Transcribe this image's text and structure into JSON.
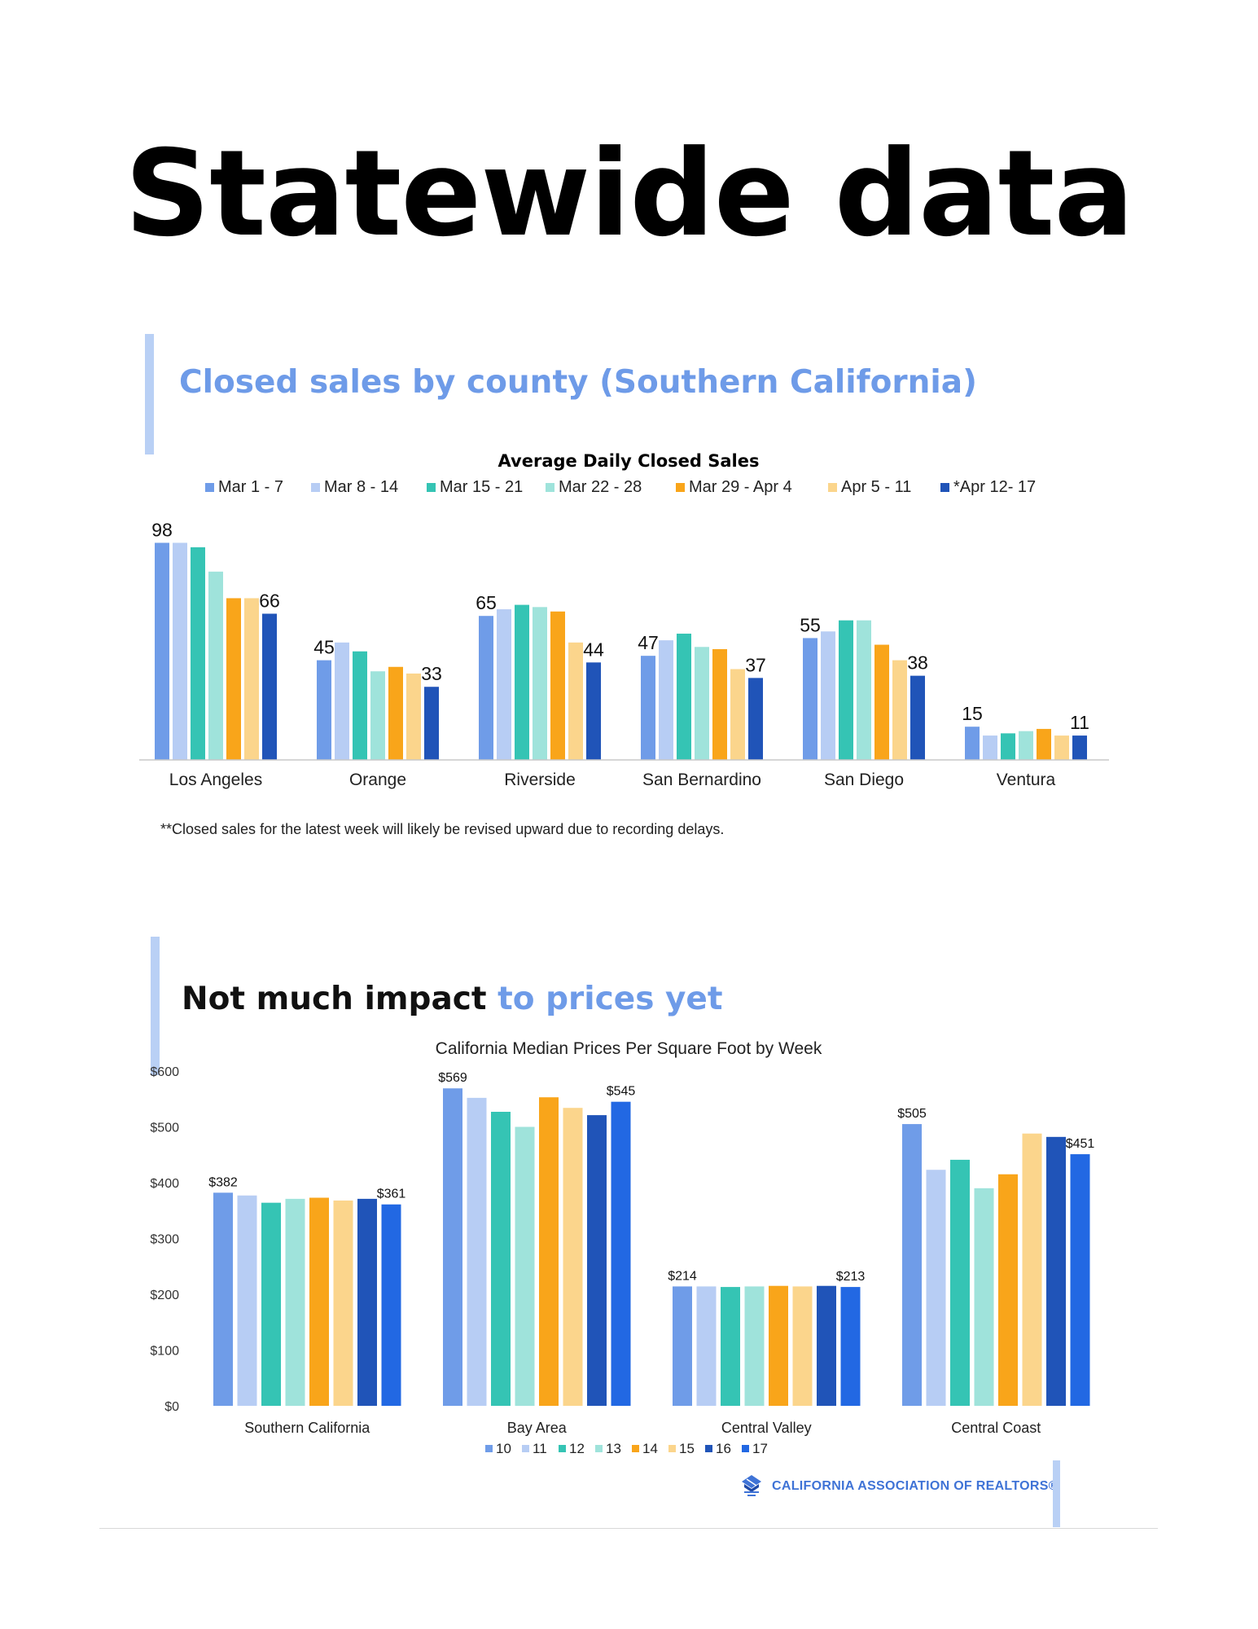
{
  "page": {
    "title": "Statewide data"
  },
  "section1": {
    "heading": "Closed sales by county (Southern California)",
    "footnote": "**Closed sales for the latest week will likely be revised upward due to recording delays."
  },
  "section2": {
    "heading_dark": "Not much impact ",
    "heading_accent": "to prices yet"
  },
  "footer": {
    "logo_text": "CALIFORNIA ASSOCIATION OF REALTORS®"
  },
  "colors": {
    "accent": "#6e9be8",
    "accent_bar": "#b9d0f5",
    "logo": "#3f73d6"
  },
  "chart_data": [
    {
      "type": "bar",
      "title": "Average Daily Closed Sales",
      "categories": [
        "Los Angeles",
        "Orange",
        "Riverside",
        "San Bernardino",
        "San Diego",
        "Ventura"
      ],
      "series": [
        {
          "name": "Mar 1 - 7",
          "color": "#6f9ce8",
          "values": [
            98,
            45,
            65,
            47,
            55,
            15
          ]
        },
        {
          "name": "Mar 8 - 14",
          "color": "#b7cdf4",
          "values": [
            98,
            53,
            68,
            54,
            58,
            11
          ]
        },
        {
          "name": "Mar 15 - 21",
          "color": "#35c4b4",
          "values": [
            96,
            49,
            70,
            57,
            63,
            12
          ]
        },
        {
          "name": "Mar 22 - 28",
          "color": "#9fe3db",
          "values": [
            85,
            40,
            69,
            51,
            63,
            13
          ]
        },
        {
          "name": "Mar 29 - Apr 4",
          "color": "#f9a51a",
          "values": [
            73,
            42,
            67,
            50,
            52,
            14
          ]
        },
        {
          "name": "Apr 5 - 11",
          "color": "#fbd58c",
          "values": [
            73,
            39,
            53,
            41,
            45,
            11
          ]
        },
        {
          "name": "*Apr 12- 17",
          "color": "#2054b8",
          "values": [
            66,
            33,
            44,
            37,
            38,
            11
          ]
        }
      ],
      "data_labels": [
        {
          "category": "Los Angeles",
          "first": "98",
          "last": "66"
        },
        {
          "category": "Orange",
          "first": "45",
          "last": "33"
        },
        {
          "category": "Riverside",
          "first": "65",
          "last": "44"
        },
        {
          "category": "San Bernardino",
          "first": "47",
          "last": "37"
        },
        {
          "category": "San Diego",
          "first": "55",
          "last": "38"
        },
        {
          "category": "Ventura",
          "first": "15",
          "last": "11"
        }
      ],
      "ylim": [
        0,
        105
      ],
      "legend": "top",
      "grid": false
    },
    {
      "type": "bar",
      "title": "California Median Prices Per Square Foot by Week",
      "categories": [
        "Southern California",
        "Bay Area",
        "Central Valley",
        "Central Coast"
      ],
      "series": [
        {
          "name": "10",
          "color": "#6f9ce8",
          "values": [
            382,
            569,
            214,
            505
          ]
        },
        {
          "name": "11",
          "color": "#b7cdf4",
          "values": [
            377,
            552,
            214,
            423
          ]
        },
        {
          "name": "12",
          "color": "#35c4b4",
          "values": [
            364,
            527,
            213,
            441
          ]
        },
        {
          "name": "13",
          "color": "#9fe3db",
          "values": [
            371,
            500,
            214,
            390
          ]
        },
        {
          "name": "14",
          "color": "#f9a51a",
          "values": [
            373,
            553,
            215,
            415
          ]
        },
        {
          "name": "15",
          "color": "#fbd58c",
          "values": [
            368,
            534,
            214,
            488
          ]
        },
        {
          "name": "16",
          "color": "#2054b8",
          "values": [
            371,
            521,
            215,
            482
          ]
        },
        {
          "name": "17",
          "color": "#2268e3",
          "values": [
            361,
            545,
            213,
            451
          ]
        }
      ],
      "data_labels": [
        {
          "category": "Southern California",
          "first": "$382",
          "last": "$361"
        },
        {
          "category": "Bay Area",
          "first": "$569",
          "last": "$545"
        },
        {
          "category": "Central Valley",
          "first": "$214",
          "last": "$213"
        },
        {
          "category": "Central Coast",
          "first": "$505",
          "last": "$451"
        }
      ],
      "yticks": [
        "$0",
        "$100",
        "$200",
        "$300",
        "$400",
        "$500",
        "$600"
      ],
      "ylim": [
        0,
        600
      ],
      "legend": "bottom",
      "grid": false
    }
  ]
}
